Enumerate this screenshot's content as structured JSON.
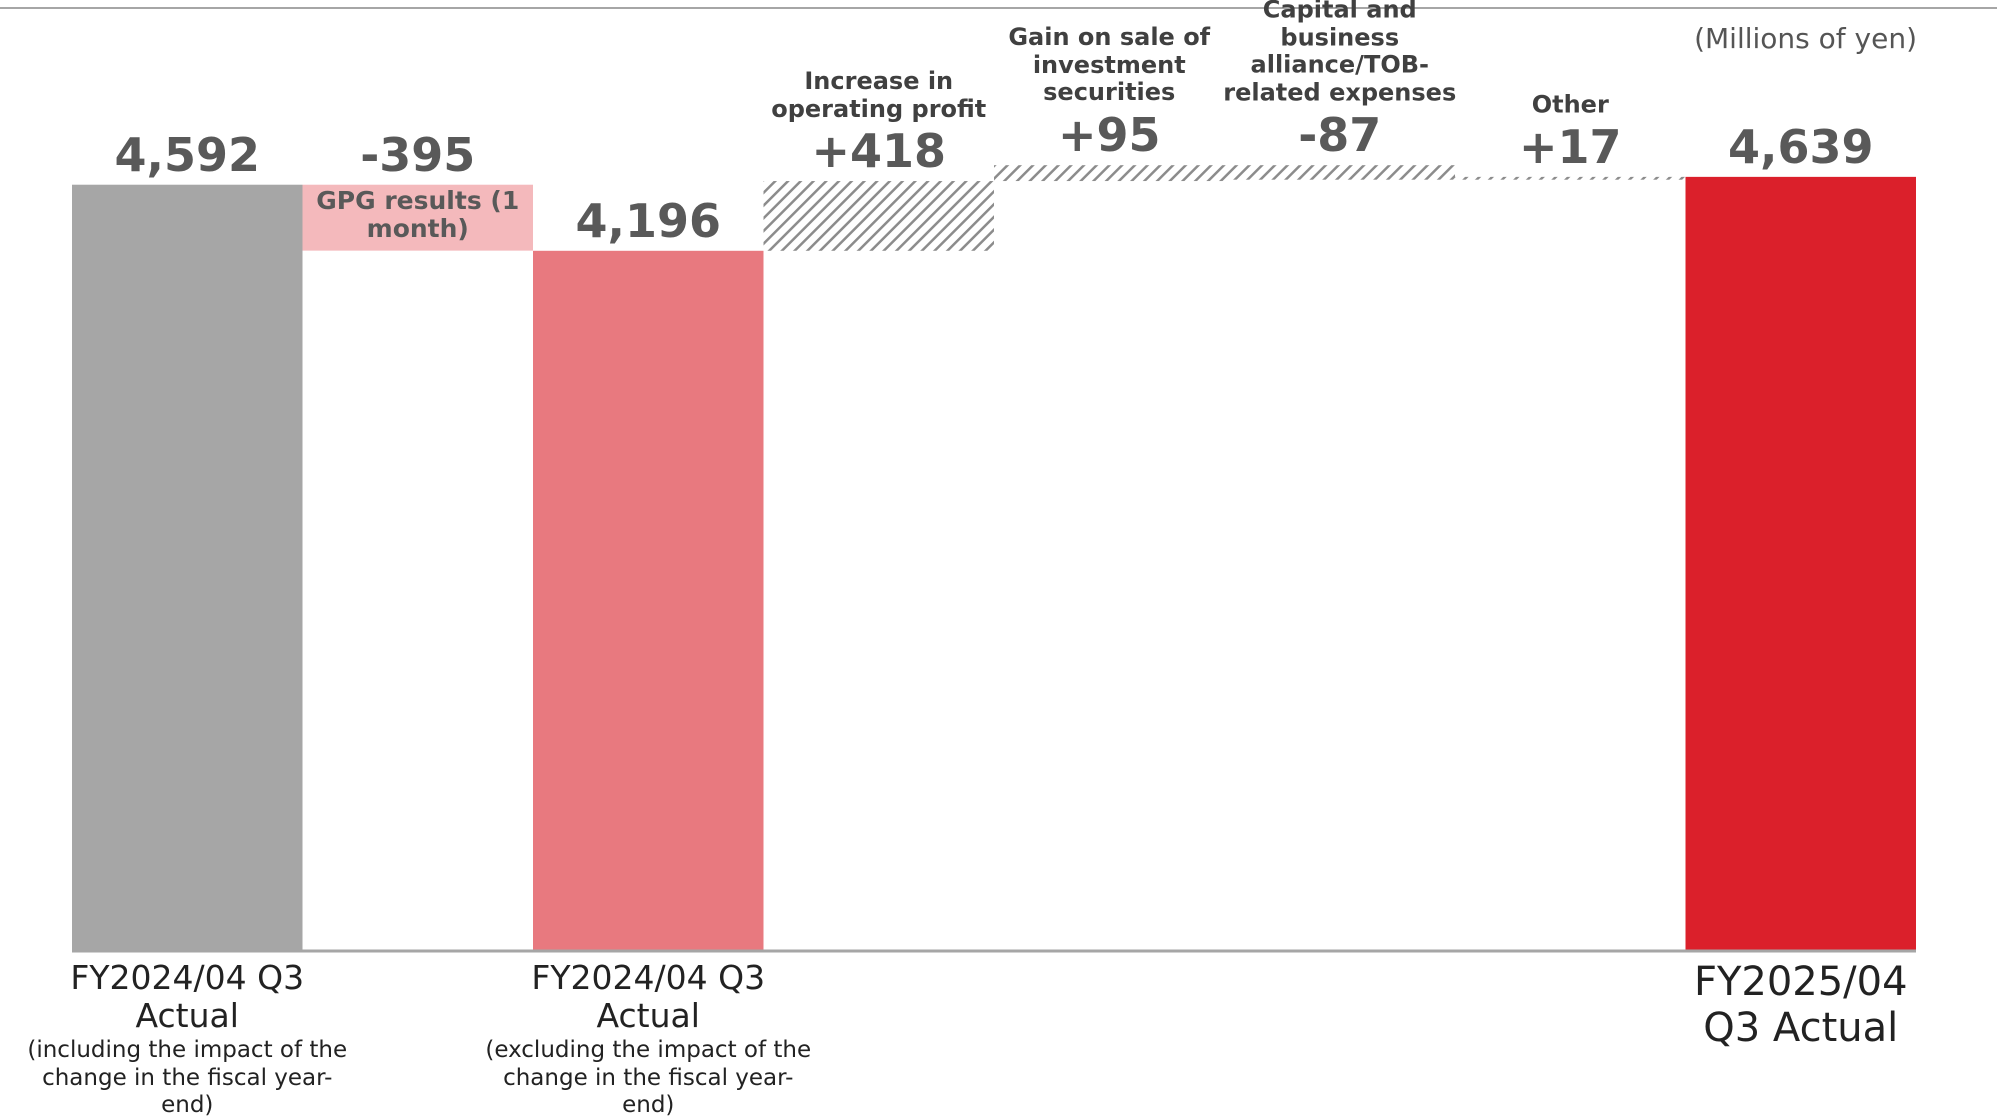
{
  "chart_data": {
    "type": "waterfall",
    "unit_label": "(Millions of yen)",
    "categories": [
      "FY2024/04 Q3 Actual",
      "GPG results (1 month)",
      "FY2024/04 Q3 Actual",
      "Increase in operating profit",
      "Gain on sale of investment securities",
      "Capital and business alliance/TOB-related expenses",
      "Other",
      "FY2025/04 Q3 Actual"
    ],
    "sublabels": [
      "(including the impact of the change in the fiscal year-end)",
      null,
      "(excluding the impact of the change in the fiscal year-end)",
      null,
      null,
      null,
      null,
      null
    ],
    "measures": [
      "absolute",
      "relative",
      "absolute",
      "relative",
      "relative",
      "relative",
      "relative",
      "absolute"
    ],
    "category_positions": [
      "bottom",
      "inside",
      "bottom",
      "top",
      "top",
      "top",
      "top",
      "bottom"
    ],
    "values": [
      4592,
      -395,
      4196,
      418,
      95,
      -87,
      17,
      4639
    ],
    "value_labels": [
      "4,592",
      "-395",
      "4,196",
      "+418",
      "+95",
      "-87",
      "+17",
      "4,639"
    ],
    "colors": [
      "#a6a6a6",
      "#f4b9bc",
      "#e8797f",
      "#8c8c8c",
      "#8c8c8c",
      "#8c8c8c",
      "#8c8c8c",
      "#db202b"
    ],
    "hatched": [
      false,
      false,
      false,
      true,
      true,
      true,
      true,
      false
    ],
    "ylim": [
      0,
      4800
    ]
  }
}
